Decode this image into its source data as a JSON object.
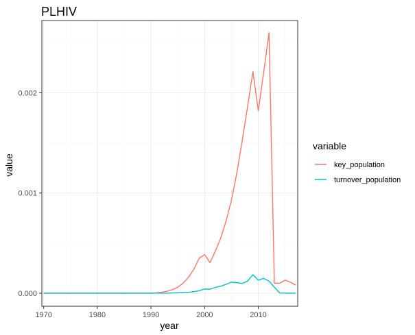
{
  "chart_data": {
    "type": "line",
    "title": "PLHIV",
    "xlabel": "year",
    "ylabel": "value",
    "xlim": [
      1969.65,
      2017.35
    ],
    "ylim": [
      -0.00013,
      0.00272
    ],
    "xticks": [
      1970,
      1980,
      1990,
      2000,
      2010
    ],
    "xtick_labels": [
      "1970",
      "1980",
      "1990",
      "2000",
      "2010"
    ],
    "yticks": [
      0,
      0.001,
      0.002
    ],
    "ytick_labels": [
      "0.000",
      "0.001",
      "0.002"
    ],
    "grid": true,
    "legend": {
      "title": "variable",
      "placement": "right"
    },
    "x": [
      1970,
      1971,
      1972,
      1973,
      1974,
      1975,
      1976,
      1977,
      1978,
      1979,
      1980,
      1981,
      1982,
      1983,
      1984,
      1985,
      1986,
      1987,
      1988,
      1989,
      1990,
      1991,
      1992,
      1993,
      1994,
      1995,
      1996,
      1997,
      1998,
      1999,
      2000,
      2001,
      2002,
      2003,
      2004,
      2005,
      2006,
      2007,
      2008,
      2009,
      2010,
      2011,
      2012,
      2013,
      2014,
      2015,
      2016,
      2017
    ],
    "series": [
      {
        "name": "key_population",
        "color": "#F8766D",
        "values": [
          0,
          0,
          0,
          0,
          0,
          0,
          0,
          0,
          0,
          0,
          0,
          0,
          0,
          0,
          0,
          0,
          0,
          0,
          0,
          0,
          0,
          4e-06,
          1e-05,
          2e-05,
          3.5e-05,
          6e-05,
          0.0001,
          0.00016,
          0.00024,
          0.00035,
          0.000385,
          0.000305,
          0.00042,
          0.00055,
          0.00072,
          0.00093,
          0.0012,
          0.00152,
          0.00186,
          0.00221,
          0.00182,
          0.0022,
          0.0026,
          0.0001,
          0.0001,
          0.00013,
          0.00011,
          8e-05
        ]
      },
      {
        "name": "turnover_population",
        "color": "#00BFC4",
        "values": [
          0,
          0,
          0,
          0,
          0,
          0,
          0,
          0,
          0,
          0,
          0,
          0,
          0,
          0,
          0,
          0,
          0,
          0,
          0,
          0,
          0,
          0,
          0,
          0,
          2e-06,
          4e-06,
          7e-06,
          1e-05,
          1.6e-05,
          2.5e-05,
          4.2e-05,
          4e-05,
          5.8e-05,
          7e-05,
          8.8e-05,
          0.00011,
          0.000105,
          9.8e-05,
          0.00012,
          0.000185,
          0.00013,
          0.000148,
          0.00012,
          6e-05,
          2e-06,
          0,
          0,
          0
        ]
      }
    ]
  }
}
